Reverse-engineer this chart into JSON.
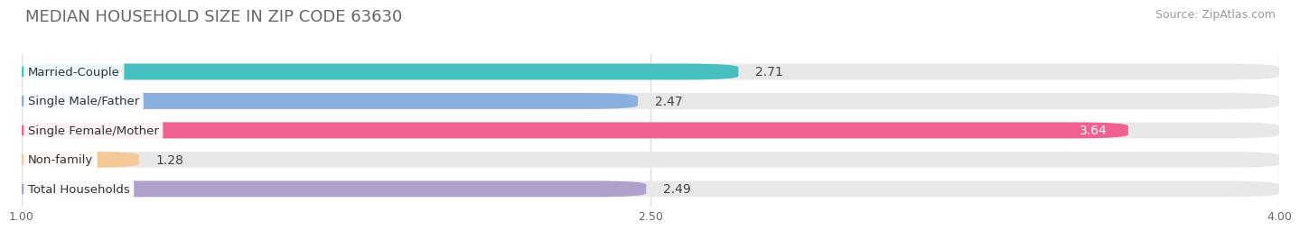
{
  "title": "MEDIAN HOUSEHOLD SIZE IN ZIP CODE 63630",
  "source": "Source: ZipAtlas.com",
  "categories": [
    "Married-Couple",
    "Single Male/Father",
    "Single Female/Mother",
    "Non-family",
    "Total Households"
  ],
  "values": [
    2.71,
    2.47,
    3.64,
    1.28,
    2.49
  ],
  "bar_colors": [
    "#45bfbf",
    "#8ab0e0",
    "#f06090",
    "#f5c898",
    "#b0a0cc"
  ],
  "xlim_min": 1.0,
  "xlim_max": 4.0,
  "xticks": [
    1.0,
    2.5,
    4.0
  ],
  "xticklabels": [
    "1.00",
    "2.50",
    "4.00"
  ],
  "label_inside_color": "#ffffff",
  "label_outside_color": "#444444",
  "title_fontsize": 13,
  "source_fontsize": 9,
  "bar_label_fontsize": 10,
  "category_fontsize": 9.5,
  "background_color": "#ffffff",
  "bar_bg_color": "#e8e8e8",
  "bar_height": 0.55,
  "bar_spacing": 1.0
}
